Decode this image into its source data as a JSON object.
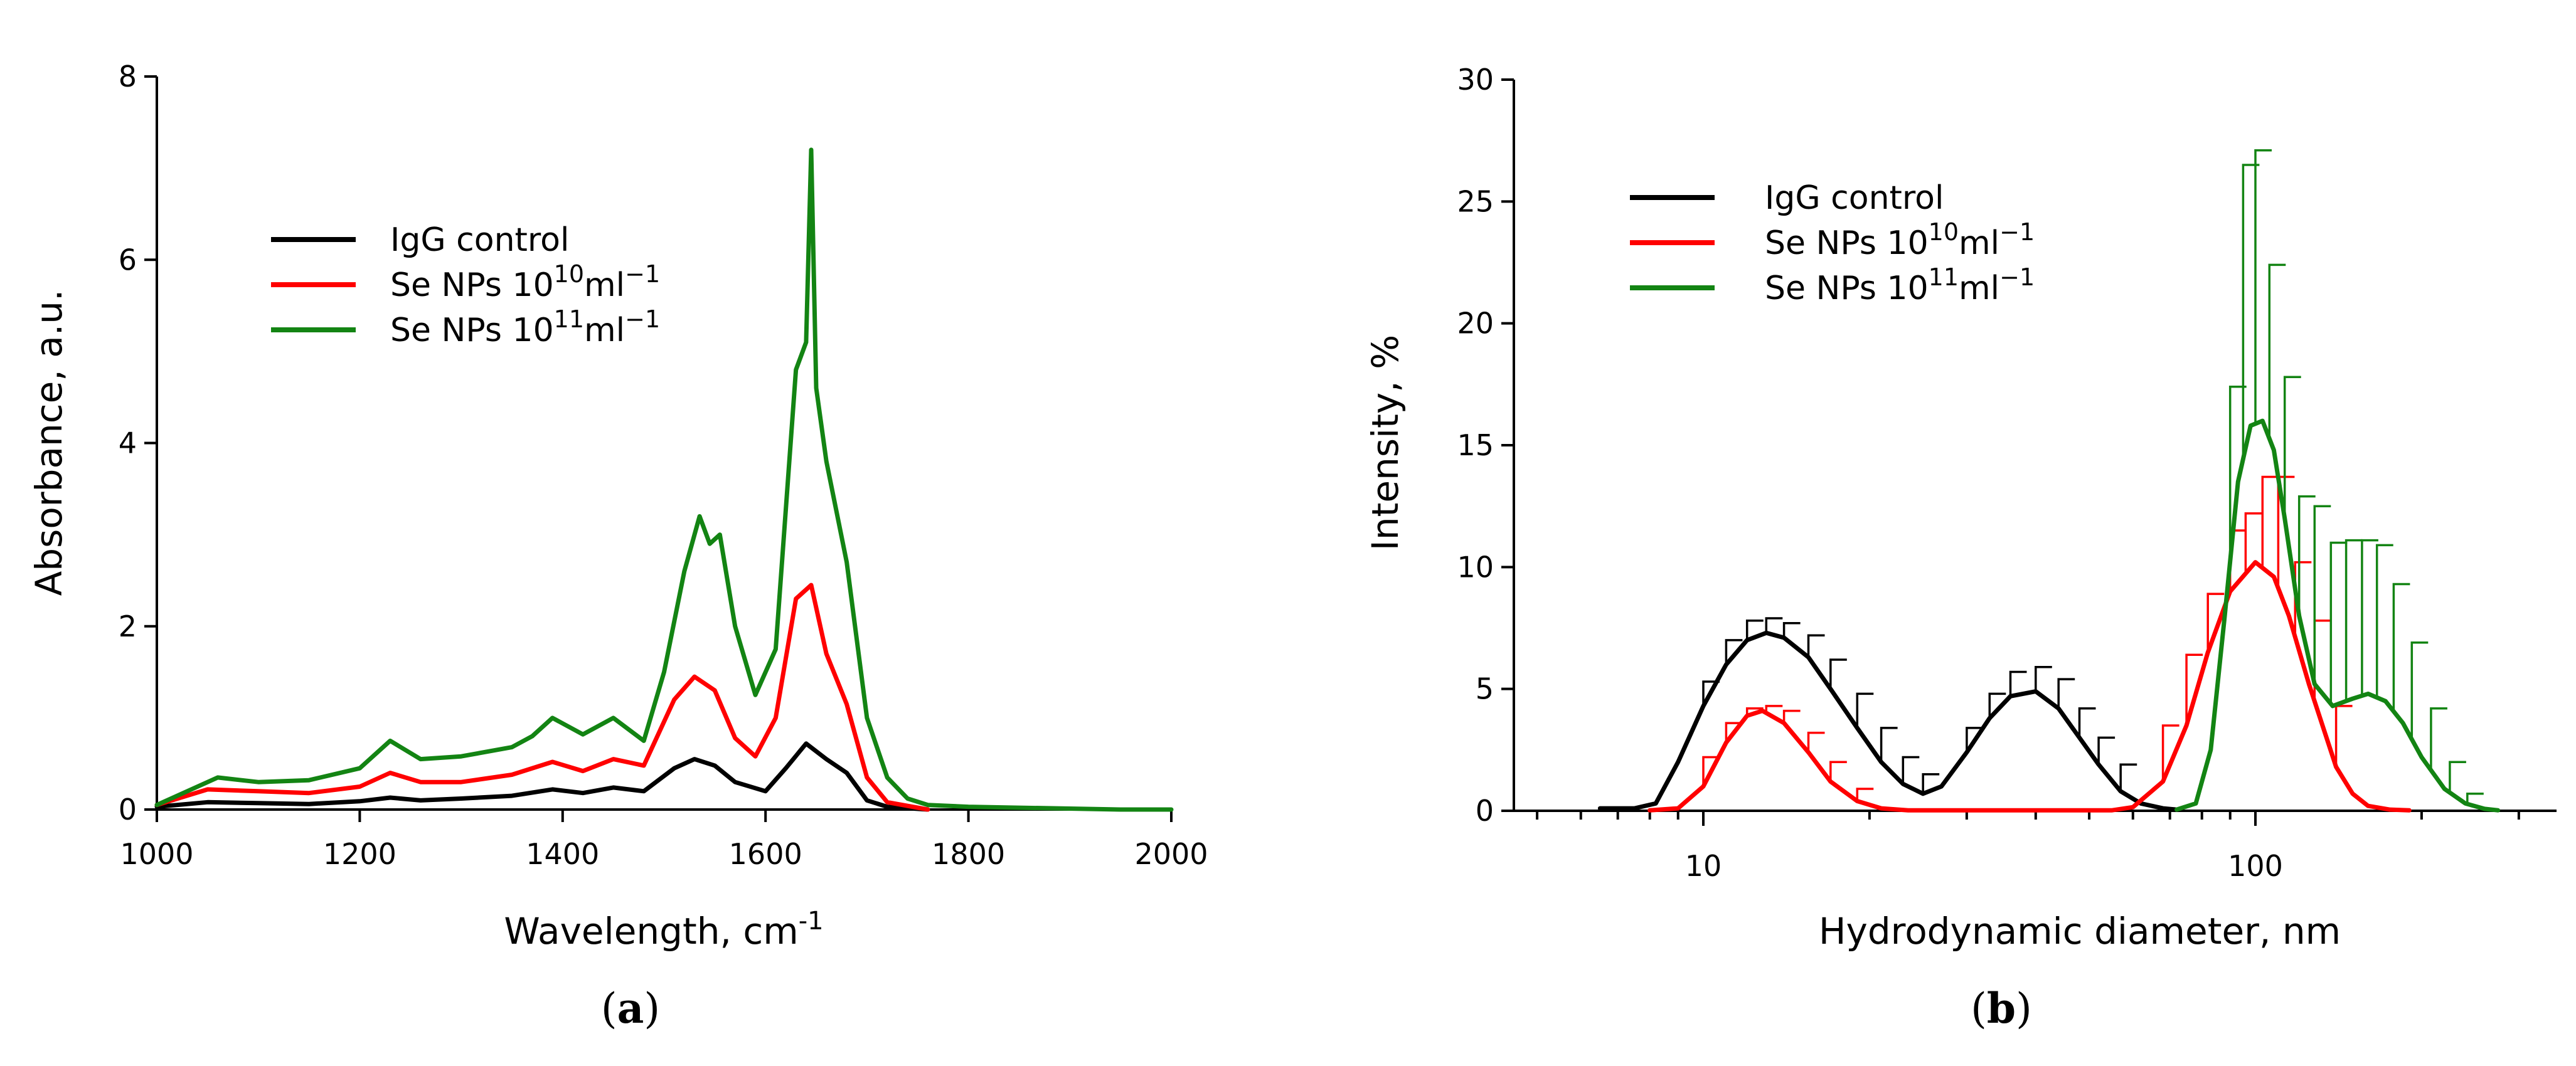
{
  "chart_data": [
    {
      "type": "line",
      "panel_label": "(a)",
      "panel_letter": "a",
      "title": "",
      "xlabel": "Wavelength, cm",
      "xlabel_sup": "-1",
      "ylabel": "Absorbance, a.u.",
      "xlim": [
        1000,
        2000
      ],
      "ylim": [
        0,
        8
      ],
      "xticks": [
        "1000",
        "1200",
        "1400",
        "1600",
        "1800",
        "2000"
      ],
      "yticks": [
        "0",
        "2",
        "4",
        "6",
        "8"
      ],
      "legend": [
        {
          "name": "IgG control",
          "color": "#000000",
          "parts": [
            {
              "t": "IgG control"
            }
          ]
        },
        {
          "name": "Se NPs 10^10 ml^-1",
          "color": "#ff0000",
          "parts": [
            {
              "t": "Se NPs 10"
            },
            {
              "t": "10",
              "sup": true
            },
            {
              "t": "ml"
            },
            {
              "t": "−1",
              "sup": true
            }
          ]
        },
        {
          "name": "Se NPs 10^11 ml^-1",
          "color": "#138413",
          "parts": [
            {
              "t": "Se NPs 10"
            },
            {
              "t": "11",
              "sup": true
            },
            {
              "t": "ml"
            },
            {
              "t": "−1",
              "sup": true
            }
          ]
        }
      ],
      "series": [
        {
          "name": "IgG control",
          "color": "#000000",
          "x": [
            1000,
            1050,
            1100,
            1150,
            1200,
            1230,
            1260,
            1300,
            1350,
            1390,
            1420,
            1450,
            1480,
            1510,
            1530,
            1550,
            1570,
            1600,
            1620,
            1640,
            1660,
            1680,
            1700,
            1720,
            1760
          ],
          "y": [
            0.03,
            0.08,
            0.07,
            0.06,
            0.09,
            0.13,
            0.1,
            0.12,
            0.15,
            0.22,
            0.18,
            0.24,
            0.2,
            0.45,
            0.55,
            0.48,
            0.3,
            0.2,
            0.45,
            0.72,
            0.55,
            0.4,
            0.1,
            0.03,
            0.0
          ]
        },
        {
          "name": "Se NPs 10^10 ml^-1",
          "color": "#ff0000",
          "x": [
            1000,
            1050,
            1100,
            1150,
            1200,
            1230,
            1260,
            1300,
            1350,
            1390,
            1420,
            1450,
            1480,
            1510,
            1530,
            1550,
            1570,
            1590,
            1610,
            1630,
            1645,
            1660,
            1680,
            1700,
            1720,
            1760
          ],
          "y": [
            0.05,
            0.22,
            0.2,
            0.18,
            0.25,
            0.4,
            0.3,
            0.3,
            0.38,
            0.52,
            0.42,
            0.55,
            0.48,
            1.2,
            1.45,
            1.3,
            0.78,
            0.58,
            1.0,
            2.3,
            2.45,
            1.7,
            1.15,
            0.35,
            0.08,
            0.0
          ]
        },
        {
          "name": "Se NPs 10^11 ml^-1",
          "color": "#138413",
          "x": [
            1000,
            1030,
            1060,
            1100,
            1150,
            1200,
            1230,
            1260,
            1300,
            1350,
            1370,
            1390,
            1420,
            1450,
            1480,
            1500,
            1520,
            1535,
            1545,
            1555,
            1570,
            1590,
            1610,
            1630,
            1640,
            1645,
            1650,
            1660,
            1680,
            1700,
            1720,
            1740,
            1760,
            1800,
            1850,
            1900,
            1950,
            2000
          ],
          "y": [
            0.05,
            0.2,
            0.35,
            0.3,
            0.32,
            0.45,
            0.75,
            0.55,
            0.58,
            0.68,
            0.8,
            1.0,
            0.82,
            1.0,
            0.75,
            1.5,
            2.6,
            3.2,
            2.9,
            3.0,
            2.0,
            1.25,
            1.75,
            4.8,
            5.1,
            7.2,
            4.6,
            3.8,
            2.7,
            1.0,
            0.35,
            0.12,
            0.05,
            0.03,
            0.02,
            0.01,
            0.0,
            0.0
          ]
        }
      ]
    },
    {
      "type": "line",
      "panel_label": "(b)",
      "panel_letter": "b",
      "title": "",
      "xlabel": "Hydrodynamic diameter, nm",
      "ylabel": "Intensity, %",
      "xscale": "log",
      "xlim": [
        4.8,
        300
      ],
      "ylim": [
        0,
        30
      ],
      "xticks": [
        "10",
        "100"
      ],
      "yticks": [
        "0",
        "5",
        "10",
        "15",
        "20",
        "25",
        "30"
      ],
      "legend": [
        {
          "name": "IgG control",
          "color": "#000000",
          "parts": [
            {
              "t": "IgG control"
            }
          ]
        },
        {
          "name": "Se NPs 10^10 ml^-1",
          "color": "#ff0000",
          "parts": [
            {
              "t": "Se NPs 10"
            },
            {
              "t": "10",
              "sup": true
            },
            {
              "t": "ml"
            },
            {
              "t": "−1",
              "sup": true
            }
          ]
        },
        {
          "name": "Se NPs 10^11 ml^-1",
          "color": "#138413",
          "parts": [
            {
              "t": "Se NPs 10"
            },
            {
              "t": "11",
              "sup": true
            },
            {
              "t": "ml"
            },
            {
              "t": "−1",
              "sup": true
            }
          ]
        }
      ],
      "series": [
        {
          "name": "IgG control",
          "color": "#000000",
          "x": [
            6.5,
            7.5,
            8.2,
            9,
            10,
            11,
            12,
            13,
            14,
            15.5,
            17,
            19,
            21,
            23,
            25,
            27,
            30,
            33,
            36,
            40,
            44,
            48,
            52,
            57,
            62,
            68,
            72
          ],
          "y": [
            0.1,
            0.1,
            0.3,
            2.0,
            4.3,
            6.0,
            7.0,
            7.3,
            7.1,
            6.3,
            5.0,
            3.4,
            2.0,
            1.1,
            0.7,
            1.0,
            2.4,
            3.8,
            4.7,
            4.9,
            4.2,
            3.0,
            1.9,
            0.8,
            0.3,
            0.1,
            0.05
          ],
          "err": [
            [
              10,
              5.3
            ],
            [
              11,
              7.0
            ],
            [
              12,
              7.8
            ],
            [
              13,
              7.9
            ],
            [
              14,
              7.7
            ],
            [
              15.5,
              7.2
            ],
            [
              17,
              6.2
            ],
            [
              19,
              4.8
            ],
            [
              21,
              3.4
            ],
            [
              23,
              2.2
            ],
            [
              25,
              1.5
            ],
            [
              30,
              3.4
            ],
            [
              33,
              4.8
            ],
            [
              36,
              5.7
            ],
            [
              40,
              5.9
            ],
            [
              44,
              5.4
            ],
            [
              48,
              4.2
            ],
            [
              52,
              3.0
            ],
            [
              57,
              1.9
            ]
          ]
        },
        {
          "name": "Se NPs 10^10 ml^-1",
          "color": "#ff0000",
          "x": [
            8,
            9,
            10,
            11,
            12,
            12.8,
            14,
            15.5,
            17,
            19,
            21,
            23.5,
            55,
            60,
            68,
            75,
            82,
            90,
            100,
            108,
            115,
            125,
            140,
            150,
            160,
            175,
            190
          ],
          "y": [
            0.02,
            0.1,
            1.0,
            2.8,
            3.9,
            4.1,
            3.6,
            2.4,
            1.2,
            0.4,
            0.1,
            0.02,
            0.02,
            0.15,
            1.2,
            3.5,
            6.5,
            9.0,
            10.2,
            9.6,
            8.0,
            5.2,
            1.8,
            0.7,
            0.2,
            0.05,
            0.02
          ],
          "err": [
            [
              10,
              2.2
            ],
            [
              11,
              3.6
            ],
            [
              12,
              4.2
            ],
            [
              13,
              4.3
            ],
            [
              14,
              4.1
            ],
            [
              15.5,
              3.2
            ],
            [
              17,
              2.0
            ],
            [
              19,
              0.9
            ],
            [
              68,
              3.5
            ],
            [
              75,
              6.4
            ],
            [
              82,
              8.9
            ],
            [
              90,
              11.5
            ],
            [
              96,
              12.2
            ],
            [
              103,
              13.7
            ],
            [
              110,
              13.7
            ],
            [
              118,
              10.2
            ],
            [
              128,
              7.8
            ],
            [
              140,
              4.3
            ]
          ]
        },
        {
          "name": "Se NPs 10^11 ml^-1",
          "color": "#138413",
          "x": [
            72,
            78,
            83,
            88,
            93,
            98,
            103,
            108,
            113,
            120,
            128,
            138,
            150,
            160,
            172,
            185,
            200,
            220,
            240,
            260,
            275
          ],
          "y": [
            0.05,
            0.3,
            2.5,
            8.0,
            13.5,
            15.8,
            16.0,
            14.8,
            12.0,
            8.0,
            5.2,
            4.3,
            4.6,
            4.8,
            4.5,
            3.6,
            2.2,
            0.9,
            0.3,
            0.08,
            0.02
          ],
          "err": [
            [
              90,
              17.4
            ],
            [
              95,
              26.5
            ],
            [
              100,
              27.1
            ],
            [
              106,
              22.4
            ],
            [
              113,
              17.8
            ],
            [
              120,
              12.9
            ],
            [
              128,
              12.5
            ],
            [
              137,
              11.0
            ],
            [
              146,
              11.1
            ],
            [
              156,
              11.1
            ],
            [
              166,
              10.9
            ],
            [
              178,
              9.3
            ],
            [
              192,
              6.9
            ],
            [
              208,
              4.2
            ],
            [
              225,
              2.0
            ],
            [
              242,
              0.7
            ]
          ]
        }
      ]
    }
  ]
}
